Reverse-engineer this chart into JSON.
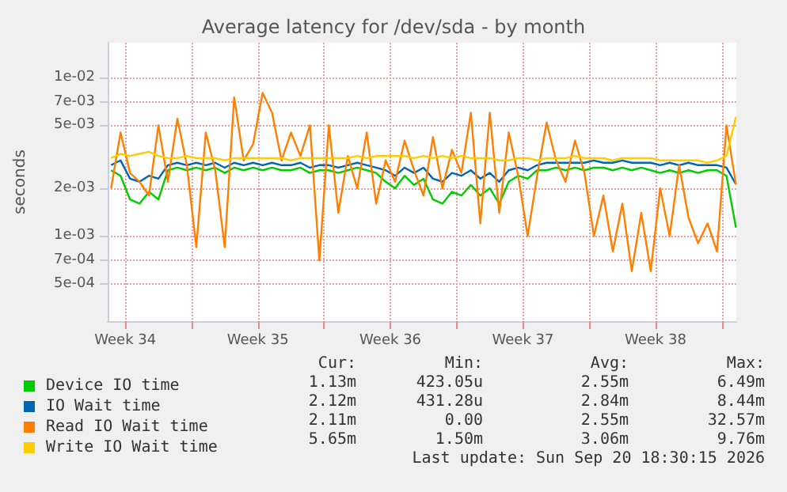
{
  "chart_data": {
    "type": "line",
    "title": "Average latency for /dev/sda - by month",
    "ylabel": "seconds",
    "x": [
      "2026-08-18T18:00",
      "2026-08-19T06:00",
      "2026-08-19T18:00",
      "2026-08-20T06:00",
      "2026-08-20T18:00",
      "2026-08-21T06:00",
      "2026-08-21T18:00",
      "2026-08-22T06:00",
      "2026-08-22T18:00",
      "2026-08-23T06:00",
      "2026-08-23T18:00",
      "2026-08-24T06:00",
      "2026-08-24T18:00",
      "2026-08-25T06:00",
      "2026-08-25T18:00",
      "2026-08-26T06:00",
      "2026-08-26T18:00",
      "2026-08-27T06:00",
      "2026-08-27T18:00",
      "2026-08-28T06:00",
      "2026-08-28T18:00",
      "2026-08-29T06:00",
      "2026-08-29T18:00",
      "2026-08-30T06:00",
      "2026-08-30T18:00",
      "2026-08-31T06:00",
      "2026-08-31T18:00",
      "2026-09-01T06:00",
      "2026-09-01T18:00",
      "2026-09-02T06:00",
      "2026-09-02T18:00",
      "2026-09-03T06:00",
      "2026-09-03T18:00",
      "2026-09-04T06:00",
      "2026-09-04T18:00",
      "2026-09-05T06:00",
      "2026-09-05T18:00",
      "2026-09-06T06:00",
      "2026-09-06T18:00",
      "2026-09-07T06:00",
      "2026-09-07T18:00",
      "2026-09-08T06:00",
      "2026-09-08T18:00",
      "2026-09-09T06:00",
      "2026-09-09T18:00",
      "2026-09-10T06:00",
      "2026-09-10T18:00",
      "2026-09-11T06:00",
      "2026-09-11T18:00",
      "2026-09-12T06:00",
      "2026-09-12T18:00",
      "2026-09-13T06:00",
      "2026-09-13T18:00",
      "2026-09-14T06:00",
      "2026-09-14T18:00",
      "2026-09-15T06:00",
      "2026-09-15T18:00",
      "2026-09-16T06:00",
      "2026-09-16T18:00",
      "2026-09-17T06:00",
      "2026-09-17T18:00",
      "2026-09-18T06:00",
      "2026-09-18T18:00",
      "2026-09-19T06:00",
      "2026-09-19T18:00",
      "2026-09-20T06:00",
      "2026-09-20T18:00"
    ],
    "series": [
      {
        "name": "Device IO time",
        "color": "#00cc00",
        "values": [
          0.0026,
          0.0024,
          0.0017,
          0.0016,
          0.0019,
          0.0017,
          0.0026,
          0.0027,
          0.0026,
          0.0027,
          0.0026,
          0.0027,
          0.0025,
          0.0027,
          0.0026,
          0.0027,
          0.0026,
          0.0027,
          0.0026,
          0.0026,
          0.0027,
          0.0025,
          0.0026,
          0.0026,
          0.0025,
          0.0026,
          0.0027,
          0.0026,
          0.0025,
          0.0022,
          0.002,
          0.0024,
          0.0021,
          0.0023,
          0.0017,
          0.0016,
          0.0019,
          0.0018,
          0.0021,
          0.0018,
          0.002,
          0.0016,
          0.0022,
          0.0024,
          0.0023,
          0.0026,
          0.0026,
          0.0027,
          0.0026,
          0.0027,
          0.0026,
          0.0027,
          0.0027,
          0.0026,
          0.0027,
          0.0026,
          0.0027,
          0.0026,
          0.0025,
          0.0026,
          0.0025,
          0.0026,
          0.0025,
          0.0026,
          0.0026,
          0.0024,
          0.00113
        ]
      },
      {
        "name": "IO Wait time",
        "color": "#0066b3",
        "values": [
          0.0028,
          0.003,
          0.0023,
          0.0022,
          0.0024,
          0.0023,
          0.0028,
          0.0029,
          0.0028,
          0.0029,
          0.0028,
          0.0029,
          0.0027,
          0.0029,
          0.0028,
          0.0029,
          0.0028,
          0.0029,
          0.0028,
          0.0028,
          0.0029,
          0.0027,
          0.0028,
          0.0028,
          0.0027,
          0.0028,
          0.0029,
          0.0028,
          0.0027,
          0.0026,
          0.0024,
          0.0027,
          0.0025,
          0.0027,
          0.0023,
          0.0022,
          0.0025,
          0.0024,
          0.0026,
          0.0023,
          0.0025,
          0.0022,
          0.0026,
          0.0027,
          0.0026,
          0.0028,
          0.0029,
          0.0029,
          0.0029,
          0.0029,
          0.0029,
          0.003,
          0.0029,
          0.0029,
          0.003,
          0.0029,
          0.0029,
          0.0029,
          0.0028,
          0.0029,
          0.0028,
          0.0029,
          0.0028,
          0.0028,
          0.0028,
          0.0027,
          0.00212
        ]
      },
      {
        "name": "Read IO Wait time",
        "color": "#ff8000",
        "values": [
          0.002,
          0.0045,
          0.0025,
          0.0022,
          0.0018,
          0.005,
          0.0022,
          0.0055,
          0.0028,
          0.00085,
          0.0045,
          0.0026,
          0.00085,
          0.0075,
          0.003,
          0.0038,
          0.008,
          0.006,
          0.003,
          0.0045,
          0.0032,
          0.005,
          0.0007,
          0.005,
          0.0014,
          0.0032,
          0.002,
          0.0045,
          0.0016,
          0.003,
          0.0022,
          0.004,
          0.0026,
          0.0018,
          0.0042,
          0.002,
          0.0035,
          0.0025,
          0.006,
          0.0012,
          0.006,
          0.0014,
          0.0045,
          0.0024,
          0.001,
          0.0024,
          0.0052,
          0.003,
          0.0022,
          0.004,
          0.0025,
          0.001,
          0.0018,
          0.0008,
          0.0016,
          0.0006,
          0.0014,
          0.0006,
          0.002,
          0.001,
          0.0028,
          0.0013,
          0.0009,
          0.0012,
          0.0008,
          0.005,
          0.00211
        ]
      },
      {
        "name": "Write IO Wait time",
        "color": "#ffcc00",
        "values": [
          0.0031,
          0.0033,
          0.0032,
          0.0033,
          0.0034,
          0.0032,
          0.0031,
          0.0031,
          0.0032,
          0.0031,
          0.0031,
          0.0031,
          0.003,
          0.0031,
          0.0031,
          0.0031,
          0.0031,
          0.0031,
          0.0031,
          0.003,
          0.0031,
          0.0031,
          0.0031,
          0.0031,
          0.0031,
          0.0031,
          0.0032,
          0.0031,
          0.0032,
          0.0032,
          0.0032,
          0.0032,
          0.0031,
          0.0032,
          0.0031,
          0.0032,
          0.0031,
          0.0032,
          0.0031,
          0.0031,
          0.0031,
          0.003,
          0.003,
          0.0031,
          0.0031,
          0.003,
          0.0031,
          0.0031,
          0.0031,
          0.0032,
          0.0031,
          0.0031,
          0.0031,
          0.003,
          0.0031,
          0.0031,
          0.0031,
          0.0031,
          0.003,
          0.003,
          0.003,
          0.003,
          0.003,
          0.0029,
          0.003,
          0.0032,
          0.00565
        ]
      }
    ],
    "xlim": [
      "2026-08-18T13:40",
      "2026-09-20T18:30"
    ],
    "xticks": [
      {
        "value": "2026-08-19T12:00",
        "label": "Week 34"
      },
      {
        "value": "2026-08-23T00:00",
        "label": null
      },
      {
        "value": "2026-08-26T12:00",
        "label": "Week 35"
      },
      {
        "value": "2026-08-30T00:00",
        "label": null
      },
      {
        "value": "2026-09-02T12:00",
        "label": "Week 36"
      },
      {
        "value": "2026-09-06T00:00",
        "label": null
      },
      {
        "value": "2026-09-09T12:00",
        "label": "Week 37"
      },
      {
        "value": "2026-09-13T00:00",
        "label": null
      },
      {
        "value": "2026-09-16T12:00",
        "label": "Week 38"
      },
      {
        "value": "2026-09-20T00:00",
        "label": null
      }
    ],
    "log": "y",
    "ylim": [
      0.00029,
      0.0166
    ],
    "yticks": [
      {
        "value": 0.0005,
        "label": "5e-04"
      },
      {
        "value": 0.0007,
        "label": "7e-04"
      },
      {
        "value": 0.001,
        "label": "1e-03"
      },
      {
        "value": 0.002,
        "label": "2e-03"
      },
      {
        "value": 0.005,
        "label": "5e-03"
      },
      {
        "value": 0.007,
        "label": "7e-03"
      },
      {
        "value": 0.01,
        "label": "1e-02"
      }
    ],
    "grid": true,
    "legend": "bottom left",
    "marker": "none",
    "line_style": "solid",
    "annotations": [
      "Cur:",
      "Min:",
      "Avg:",
      "Max:",
      "1.13m",
      "423.05u",
      "2.55m",
      "6.49m",
      "2.12m",
      "431.28u",
      "2.84m",
      "8.44m",
      "2.11m",
      "0.00",
      "2.55m",
      "32.57m",
      "5.65m",
      "1.50m",
      "3.06m",
      "9.76m",
      "Last update: Sun Sep 20 18:30:15 2026"
    ]
  }
}
